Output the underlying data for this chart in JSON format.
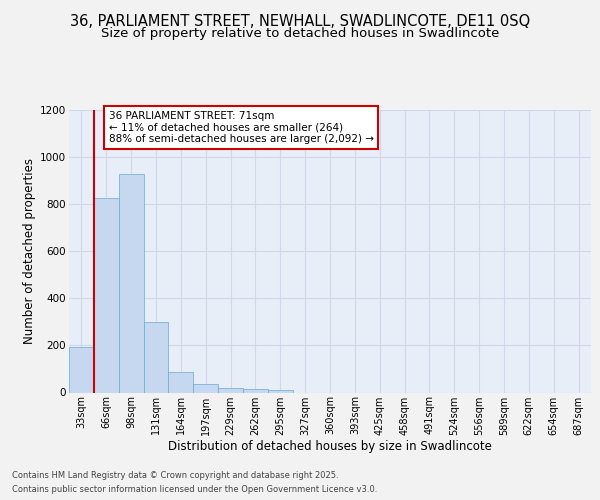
{
  "title_line1": "36, PARLIAMENT STREET, NEWHALL, SWADLINCOTE, DE11 0SQ",
  "title_line2": "Size of property relative to detached houses in Swadlincote",
  "xlabel": "Distribution of detached houses by size in Swadlincote",
  "ylabel": "Number of detached properties",
  "bin_labels": [
    "33sqm",
    "66sqm",
    "98sqm",
    "131sqm",
    "164sqm",
    "197sqm",
    "229sqm",
    "262sqm",
    "295sqm",
    "327sqm",
    "360sqm",
    "393sqm",
    "425sqm",
    "458sqm",
    "491sqm",
    "524sqm",
    "556sqm",
    "589sqm",
    "622sqm",
    "654sqm",
    "687sqm"
  ],
  "bar_values": [
    195,
    825,
    930,
    300,
    85,
    35,
    20,
    13,
    10,
    0,
    0,
    0,
    0,
    0,
    0,
    0,
    0,
    0,
    0,
    0,
    0
  ],
  "bar_color": "#c5d8f0",
  "bar_edge_color": "#6aaad4",
  "vline_color": "#cc0000",
  "vline_x": 0.5,
  "annotation_text": "36 PARLIAMENT STREET: 71sqm\n← 11% of detached houses are smaller (264)\n88% of semi-detached houses are larger (2,092) →",
  "annotation_box_facecolor": "#ffffff",
  "annotation_box_edgecolor": "#cc0000",
  "ylim_max": 1200,
  "yticks": [
    0,
    200,
    400,
    600,
    800,
    1000,
    1200
  ],
  "footer_line1": "Contains HM Land Registry data © Crown copyright and database right 2025.",
  "footer_line2": "Contains public sector information licensed under the Open Government Licence v3.0.",
  "fig_bg_color": "#f2f2f2",
  "plot_bg_color": "#e8eef8",
  "grid_color": "#d0d8e8",
  "title_fontsize": 10.5,
  "subtitle_fontsize": 9.5,
  "tick_fontsize": 7,
  "axis_label_fontsize": 8.5,
  "annot_fontsize": 7.5,
  "footer_fontsize": 6.0
}
